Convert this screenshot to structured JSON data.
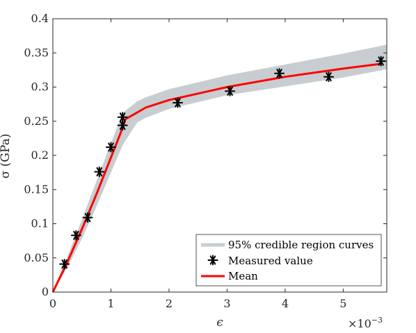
{
  "chart_data": {
    "type": "line",
    "xlabel": "ϵ",
    "ylabel": "σ (GPa)",
    "x_exponent_label": "×10",
    "x_exponent_power": "−3",
    "xlim": [
      0,
      5.75
    ],
    "ylim": [
      0,
      0.4
    ],
    "xticks": [
      0,
      1,
      2,
      3,
      4,
      5
    ],
    "xtick_labels": [
      "0",
      "1",
      "2",
      "3",
      "4",
      "5"
    ],
    "yticks": [
      0,
      0.05,
      0.1,
      0.15,
      0.2,
      0.25,
      0.3,
      0.35,
      0.4
    ],
    "ytick_labels": [
      "0",
      "0.05",
      "0.1",
      "0.15",
      "0.2",
      "0.25",
      "0.3",
      "0.35",
      "0.4"
    ],
    "grid": false,
    "legend_position": "bottom-right",
    "series": [
      {
        "name": "95% credible region curves",
        "kind": "band",
        "color": "#c7cdd0",
        "x": [
          0,
          0.25,
          0.5,
          0.75,
          1.0,
          1.2,
          1.45,
          1.6,
          2.0,
          3.0,
          4.0,
          5.0,
          5.75
        ],
        "lower": [
          0,
          0.036,
          0.078,
          0.125,
          0.175,
          0.215,
          0.248,
          0.255,
          0.268,
          0.288,
          0.301,
          0.314,
          0.326
        ],
        "upper": [
          0,
          0.052,
          0.106,
          0.162,
          0.218,
          0.262,
          0.279,
          0.285,
          0.297,
          0.317,
          0.333,
          0.349,
          0.362
        ]
      },
      {
        "name": "Measured value",
        "kind": "scatter",
        "marker": "asterisk",
        "color": "#000000",
        "x": [
          0.2,
          0.4,
          0.6,
          0.8,
          1.0,
          1.2,
          1.2,
          2.15,
          3.05,
          3.9,
          4.75,
          5.65
        ],
        "y": [
          0.041,
          0.083,
          0.109,
          0.176,
          0.212,
          0.256,
          0.244,
          0.277,
          0.294,
          0.32,
          0.315,
          0.338
        ]
      },
      {
        "name": "Mean",
        "kind": "line",
        "color": "#ff0000",
        "x": [
          0,
          0.25,
          0.5,
          0.75,
          1.0,
          1.2,
          1.25,
          1.6,
          2.0,
          3.0,
          4.0,
          5.0,
          5.65
        ],
        "y": [
          0,
          0.044,
          0.092,
          0.143,
          0.197,
          0.24,
          0.253,
          0.27,
          0.281,
          0.3,
          0.315,
          0.327,
          0.334
        ]
      }
    ]
  }
}
